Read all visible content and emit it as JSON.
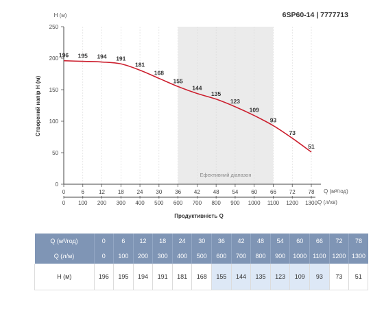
{
  "model": "6SP60-14 | 7777713",
  "chart_data": {
    "type": "line",
    "title": "6SP60-14 | 7777713",
    "ylabel": "Створений напір Н (м)",
    "y_unit_label": "Н (м)",
    "xlabel": "Продуктивність Q",
    "x_unit_primary": "Q (м³/год)",
    "x_unit_secondary": "Q (л/хв)",
    "ylim": [
      0,
      250
    ],
    "yticks": [
      0,
      50,
      100,
      150,
      200,
      250
    ],
    "xlim": [
      0,
      78
    ],
    "x": [
      0,
      6,
      12,
      18,
      24,
      30,
      36,
      42,
      48,
      54,
      60,
      66,
      72,
      78
    ],
    "x_secondary": [
      0,
      100,
      200,
      300,
      400,
      500,
      600,
      700,
      800,
      900,
      1000,
      1100,
      1200,
      1300
    ],
    "series": [
      {
        "values": [
          196,
          195,
          194,
          191,
          181,
          168,
          155,
          144,
          135,
          123,
          109,
          93,
          73,
          51
        ],
        "color": "#cc1f2e"
      }
    ],
    "efficient_range": {
      "from": 36,
      "to": 66,
      "label": "Ефективний діапазон"
    },
    "grid": true
  },
  "table": {
    "row_q_m3h_label": "Q (м³/год)",
    "row_q_lmin_label": "Q (л/м)",
    "row_h_label": "Н (м)"
  },
  "colors": {
    "curve": "#cc1f2e",
    "table_header": "#7f95b5",
    "efficient_band": "#ebebeb",
    "efficient_cell": "#dde8f6"
  }
}
